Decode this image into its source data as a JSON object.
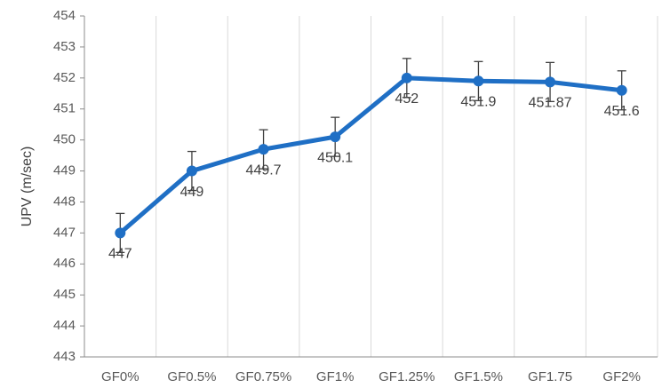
{
  "chart_data": {
    "type": "line",
    "title": "",
    "xlabel": "",
    "ylabel": "UPV (m/sec)",
    "ylim": [
      443,
      454
    ],
    "yticks": [
      443,
      444,
      445,
      446,
      447,
      448,
      449,
      450,
      451,
      452,
      453,
      454
    ],
    "categories": [
      "GF0%",
      "GF0.5%",
      "GF0.75%",
      "GF1%",
      "GF1.25%",
      "GF1.5%",
      "GF1.75",
      "GF2%"
    ],
    "series": [
      {
        "values": [
          447,
          449,
          449.7,
          450.1,
          452,
          451.9,
          451.87,
          451.6
        ],
        "data_labels": [
          "447",
          "449",
          "449.7",
          "450.1",
          "452",
          "451.9",
          "451.87",
          "451.6"
        ],
        "error": [
          0.63,
          0.63,
          0.63,
          0.63,
          0.63,
          0.63,
          0.63,
          0.63
        ],
        "color": "#1f6fc5"
      }
    ],
    "grid": {
      "vertical": true,
      "horizontal": false,
      "color": "#d9d9d9"
    },
    "legend": "none"
  }
}
